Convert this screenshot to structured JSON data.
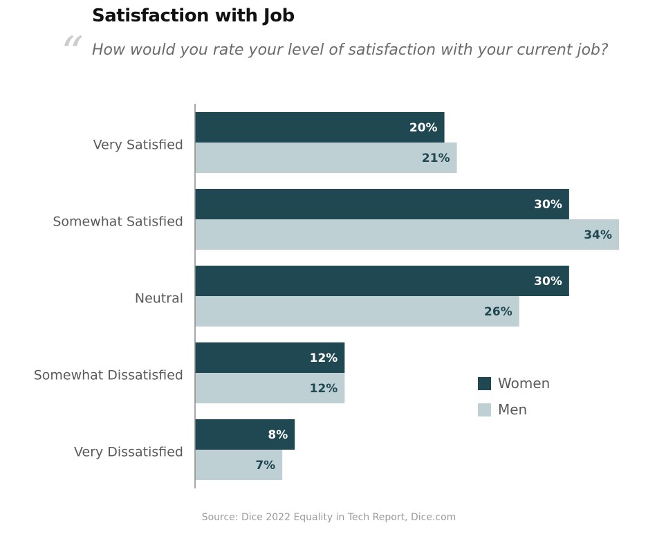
{
  "title": "Satisfaction with Job",
  "quote_mark": "“",
  "subtitle": "How would you rate your level of satisfaction with your current job?",
  "source": "Source: Dice 2022 Equality in Tech Report, Dice.com",
  "colors": {
    "women": "#1f4852",
    "men": "#bfd0d4",
    "women_label": "#ffffff",
    "men_label": "#1f4852"
  },
  "chart_data": {
    "type": "bar",
    "orientation": "horizontal",
    "categories": [
      "Very Satisfied",
      "Somewhat Satisfied",
      "Neutral",
      "Somewhat Dissatisfied",
      "Very Dissatisfied"
    ],
    "series": [
      {
        "name": "Women",
        "values": [
          20,
          30,
          30,
          12,
          8
        ],
        "labels": [
          "20%",
          "30%",
          "30%",
          "12%",
          "8%"
        ]
      },
      {
        "name": "Men",
        "values": [
          21,
          34,
          26,
          12,
          7
        ],
        "labels": [
          "21%",
          "34%",
          "26%",
          "12%",
          "7%"
        ]
      }
    ],
    "xlim": [
      0,
      34
    ],
    "grid": false,
    "legend_position": "right"
  }
}
